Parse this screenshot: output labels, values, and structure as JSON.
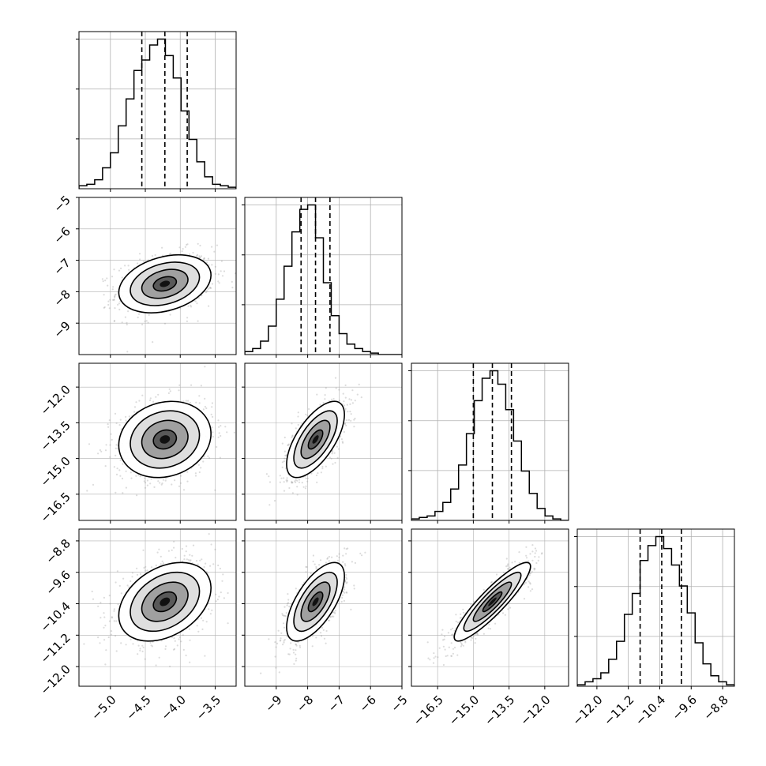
{
  "chart_data": {
    "type": "corner",
    "parameters": [
      {
        "index": 0,
        "range": [
          -5.45,
          -3.2
        ],
        "ticks": [
          -5.0,
          -4.5,
          -4.0,
          -3.5
        ],
        "tick_labels": [
          "−5.0",
          "−4.5",
          "−4.0",
          "−3.5"
        ],
        "quantiles": [
          -4.55,
          -4.22,
          -3.9
        ]
      },
      {
        "index": 1,
        "range": [
          -10.0,
          -5.0
        ],
        "ticks": [
          -9,
          -8,
          -7,
          -6,
          -5
        ],
        "tick_labels": [
          "−9",
          "−8",
          "−7",
          "−6",
          "−5"
        ],
        "quantiles": [
          -8.21,
          -7.75,
          -7.29
        ]
      },
      {
        "index": 2,
        "range": [
          -17.6,
          -11.0
        ],
        "ticks": [
          -12.0,
          -13.5,
          -15.0,
          -16.5
        ],
        "tick_labels": [
          "−12.0",
          "−13.5",
          "−15.0",
          "−16.5"
        ],
        "quantiles": [
          -15.0,
          -14.2,
          -13.4
        ]
      },
      {
        "index": 3,
        "range": [
          -12.5,
          -8.5
        ],
        "ticks": [
          -12.0,
          -11.2,
          -10.4,
          -9.6,
          -8.8
        ],
        "tick_labels": [
          "−12.0",
          "−11.2",
          "−10.4",
          "−9.6",
          "−8.8"
        ],
        "quantiles": [
          -10.9,
          -10.35,
          -9.85
        ]
      }
    ],
    "histograms": [
      {
        "param": 0,
        "bin_edges": [
          -5.45,
          -5.3375,
          -5.225,
          -5.1125,
          -5.0,
          -4.8875,
          -4.775,
          -4.6625,
          -4.55,
          -4.4375,
          -4.325,
          -4.2125,
          -4.1,
          -3.9875,
          -3.875,
          -3.7625,
          -3.65,
          -3.5375,
          -3.425,
          -3.3125,
          -3.2
        ],
        "counts": [
          2,
          3,
          6,
          14,
          24,
          42,
          60,
          79,
          86,
          96,
          100,
          89,
          74,
          52,
          33,
          18,
          8,
          3,
          2,
          1
        ]
      },
      {
        "param": 1,
        "bin_edges": [
          -10.0,
          -9.75,
          -9.5,
          -9.25,
          -9.0,
          -8.75,
          -8.5,
          -8.25,
          -8.0,
          -7.75,
          -7.5,
          -7.25,
          -7.0,
          -6.75,
          -6.5,
          -6.25,
          -6.0,
          -5.75,
          -5.5,
          -5.25,
          -5.0
        ],
        "counts": [
          2,
          4,
          9,
          19,
          37,
          59,
          82,
          97,
          100,
          78,
          48,
          26,
          14,
          7,
          4,
          2,
          1,
          0,
          0,
          0
        ]
      },
      {
        "param": 2,
        "bin_edges": [
          -17.6,
          -17.27,
          -16.94,
          -16.61,
          -16.28,
          -15.95,
          -15.62,
          -15.29,
          -14.96,
          -14.63,
          -14.3,
          -13.97,
          -13.64,
          -13.31,
          -12.98,
          -12.65,
          -12.32,
          -11.99,
          -11.66,
          -11.33,
          -11.0
        ],
        "counts": [
          1,
          2,
          3,
          6,
          12,
          21,
          37,
          58,
          80,
          95,
          100,
          91,
          74,
          53,
          33,
          18,
          8,
          3,
          1,
          0
        ]
      },
      {
        "param": 3,
        "bin_edges": [
          -12.5,
          -12.3,
          -12.1,
          -11.9,
          -11.7,
          -11.5,
          -11.3,
          -11.1,
          -10.9,
          -10.7,
          -10.5,
          -10.3,
          -10.1,
          -9.9,
          -9.7,
          -9.5,
          -9.3,
          -9.1,
          -8.9,
          -8.7,
          -8.5
        ],
        "counts": [
          1,
          3,
          5,
          9,
          18,
          30,
          48,
          62,
          84,
          94,
          100,
          92,
          81,
          67,
          49,
          29,
          15,
          7,
          3,
          1
        ]
      }
    ],
    "pairs": [
      {
        "x": 0,
        "y": 1,
        "mean": [
          -4.22,
          -7.75
        ],
        "std": [
          0.33,
          0.46
        ],
        "corr": 0.3
      },
      {
        "x": 0,
        "y": 2,
        "mean": [
          -4.22,
          -14.2
        ],
        "std": [
          0.33,
          0.8
        ],
        "corr": 0.15
      },
      {
        "x": 1,
        "y": 2,
        "mean": [
          -7.75,
          -14.2
        ],
        "std": [
          0.46,
          0.8
        ],
        "corr": 0.65
      },
      {
        "x": 0,
        "y": 3,
        "mean": [
          -4.22,
          -10.35
        ],
        "std": [
          0.33,
          0.5
        ],
        "corr": 0.35
      },
      {
        "x": 1,
        "y": 3,
        "mean": [
          -7.75,
          -10.35
        ],
        "std": [
          0.46,
          0.5
        ],
        "corr": 0.65
      },
      {
        "x": 2,
        "y": 3,
        "mean": [
          -14.2,
          -10.35
        ],
        "std": [
          0.8,
          0.5
        ],
        "corr": 0.9
      }
    ],
    "contour_levels_sigma": [
      0.5,
      1.0,
      1.5,
      2.0
    ],
    "grid": true,
    "colors": {
      "lines": "#000000",
      "points": "#9a9a9a",
      "grid": "#b0b0b0"
    }
  }
}
